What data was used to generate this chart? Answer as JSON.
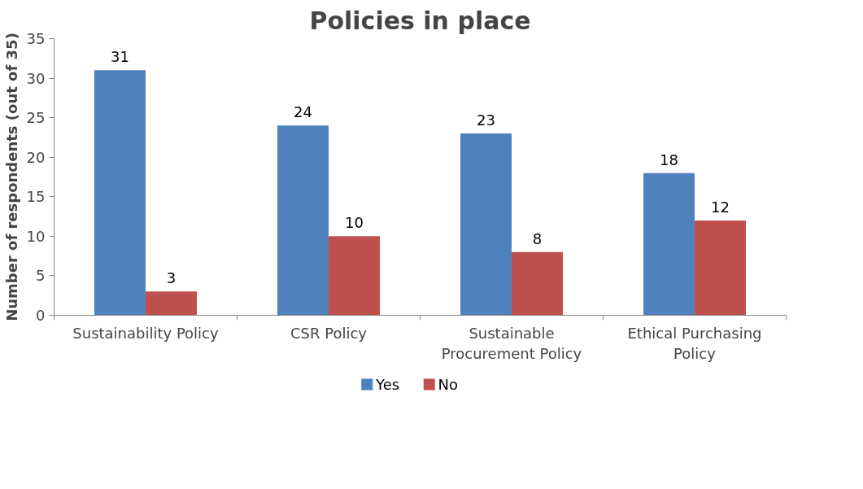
{
  "chart_data": {
    "type": "bar",
    "title": "Policies in place",
    "ylabel": "Number of respondents (out of 35)",
    "categories": [
      "Sustainability Policy",
      "CSR Policy",
      "Sustainable Procurement Policy",
      "Ethical Purchasing Policy"
    ],
    "series": [
      {
        "name": "Yes",
        "color": "#4f81bd",
        "values": [
          31,
          24,
          23,
          18
        ]
      },
      {
        "name": "No",
        "color": "#c0504d",
        "values": [
          3,
          10,
          8,
          12
        ]
      }
    ],
    "ylim": [
      0,
      35
    ],
    "yticks": [
      0,
      5,
      10,
      15,
      20,
      25,
      30,
      35
    ],
    "data_labels": true,
    "grid": false,
    "legend": "bottom"
  }
}
